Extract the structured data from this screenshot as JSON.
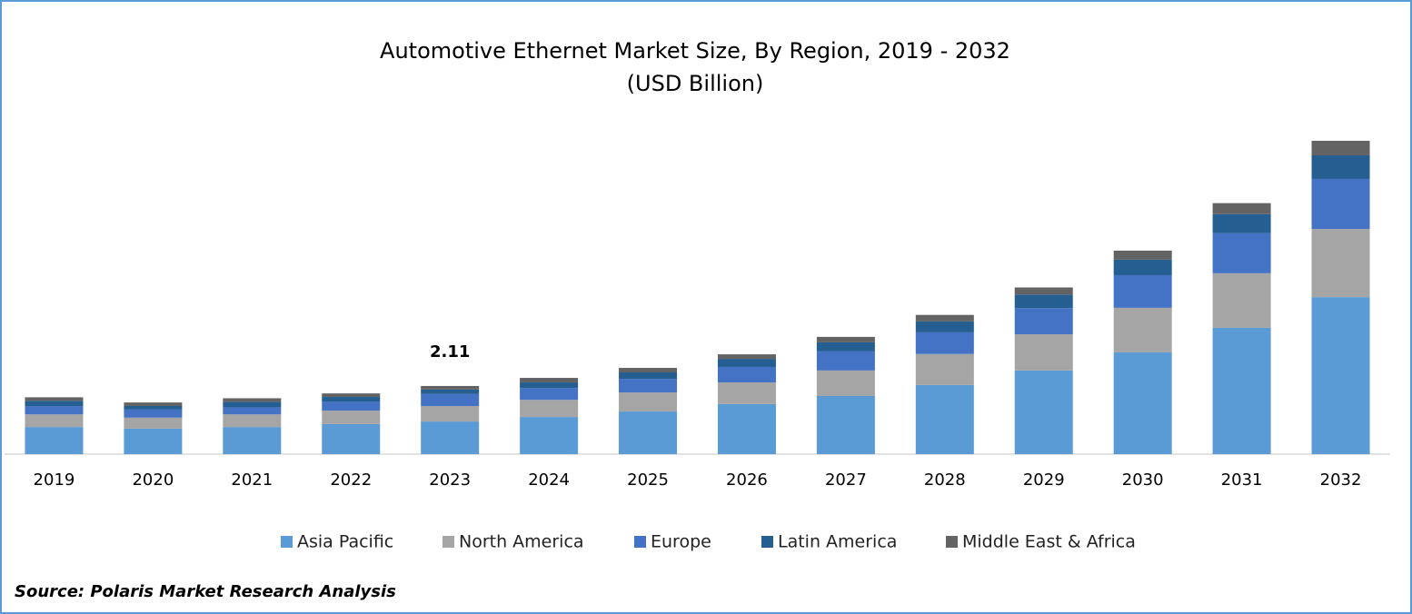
{
  "chart_data": {
    "type": "stacked-bar",
    "title": "Automotive Ethernet Market Size, By Region, 2019 - 2032",
    "subtitle": "(USD Billion)",
    "categories": [
      "2019",
      "2020",
      "2021",
      "2022",
      "2023",
      "2024",
      "2025",
      "2026",
      "2027",
      "2028",
      "2029",
      "2030",
      "2031",
      "2032"
    ],
    "series": [
      {
        "name": "Asia Pacific",
        "color": "#5b9bd5",
        "values": [
          0.84,
          0.79,
          0.84,
          0.93,
          1.01,
          1.15,
          1.32,
          1.55,
          1.8,
          2.14,
          2.59,
          3.15,
          3.91,
          4.86
        ]
      },
      {
        "name": "North America",
        "color": "#a5a5a5",
        "values": [
          0.39,
          0.34,
          0.39,
          0.42,
          0.48,
          0.53,
          0.59,
          0.67,
          0.79,
          0.96,
          1.12,
          1.38,
          1.69,
          2.11
        ]
      },
      {
        "name": "Europe",
        "color": "#4472c4",
        "values": [
          0.25,
          0.25,
          0.22,
          0.28,
          0.37,
          0.37,
          0.42,
          0.48,
          0.59,
          0.67,
          0.81,
          1.01,
          1.24,
          1.55
        ]
      },
      {
        "name": "Latin America",
        "color": "#255e91",
        "values": [
          0.17,
          0.11,
          0.17,
          0.14,
          0.14,
          0.17,
          0.2,
          0.25,
          0.28,
          0.34,
          0.42,
          0.48,
          0.59,
          0.73
        ]
      },
      {
        "name": "Middle East & Africa",
        "color": "#636363",
        "values": [
          0.11,
          0.11,
          0.11,
          0.11,
          0.11,
          0.14,
          0.14,
          0.14,
          0.17,
          0.2,
          0.22,
          0.28,
          0.34,
          0.45
        ]
      }
    ],
    "annotation": {
      "x": "2023",
      "value": 2.11
    },
    "legend": "bottom",
    "source": "Source: Polaris Market Research Analysis"
  }
}
